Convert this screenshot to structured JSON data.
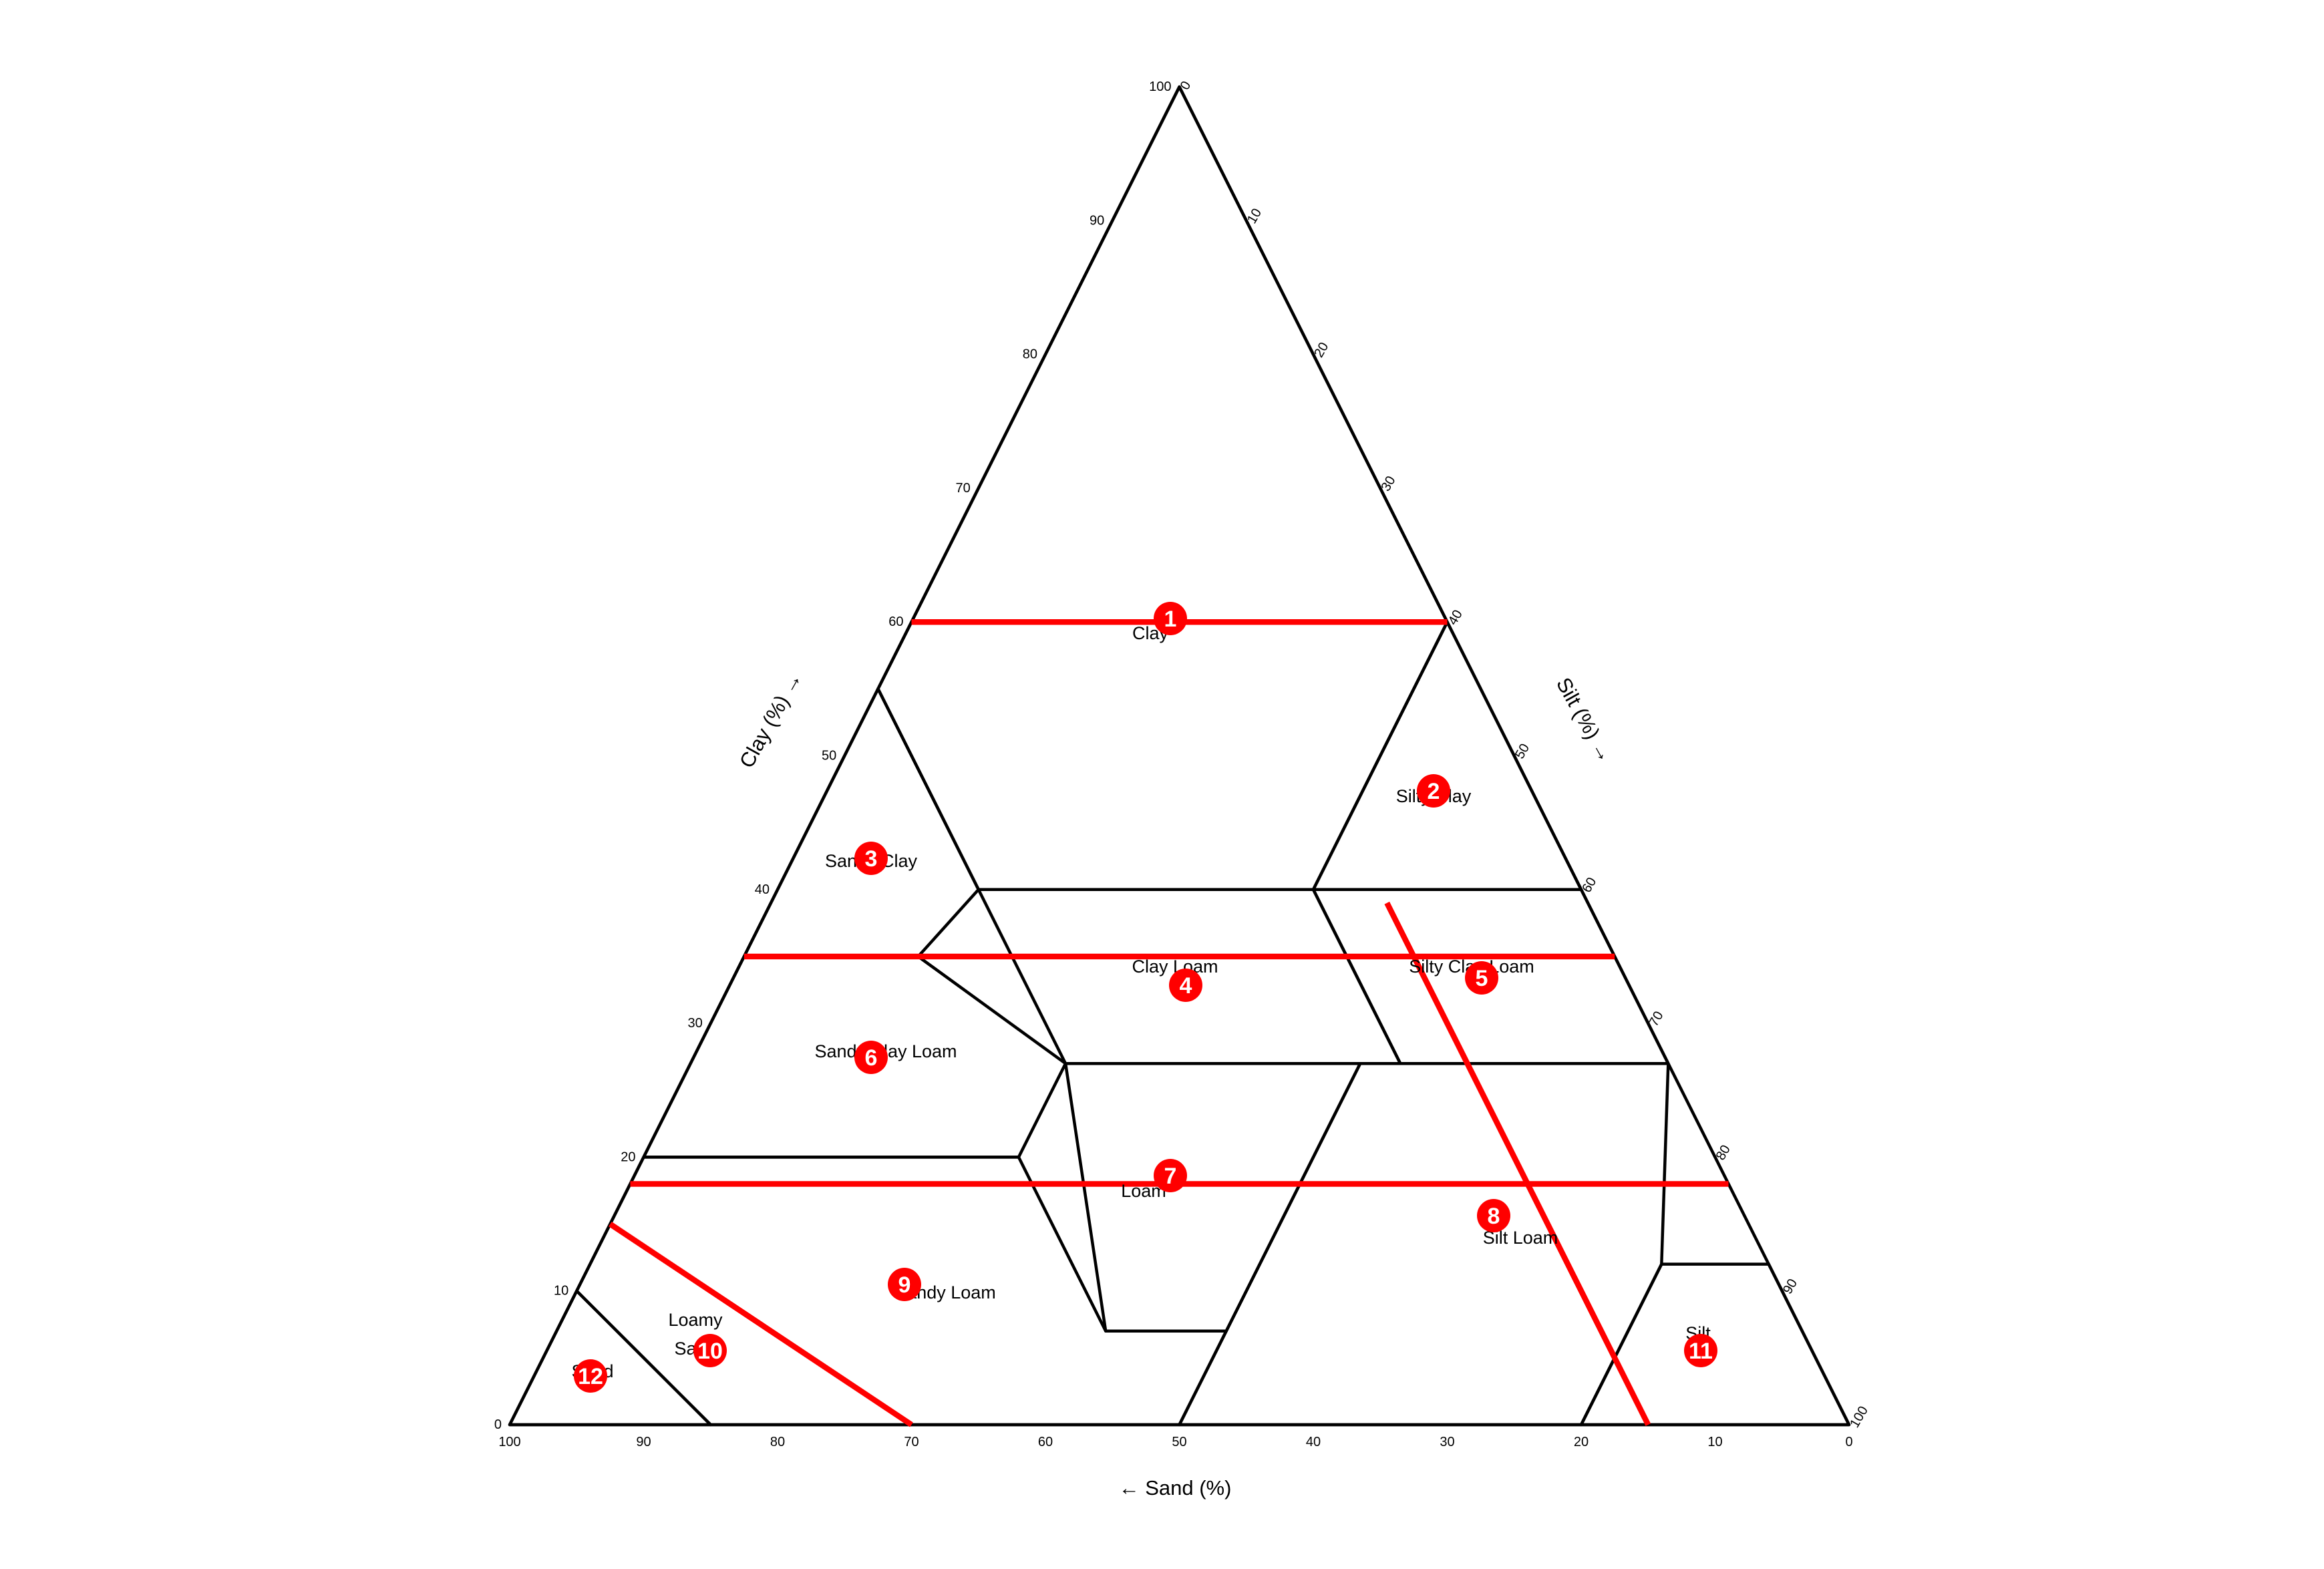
{
  "axes": {
    "clay_title": "Clay (%) →",
    "silt_title": "Silt (%) →",
    "sand_title": "← Sand (%)",
    "clay_ticks": [
      "0",
      "10",
      "20",
      "30",
      "40",
      "50",
      "60",
      "70",
      "80",
      "90",
      "100"
    ],
    "silt_ticks": [
      "0",
      "10",
      "20",
      "30",
      "40",
      "50",
      "60",
      "70",
      "80",
      "90",
      "100"
    ],
    "sand_ticks": [
      "100",
      "90",
      "80",
      "70",
      "60",
      "50",
      "40",
      "30",
      "20",
      "10",
      "0"
    ]
  },
  "regions": [
    {
      "name": "Clay",
      "lines": [
        "Clay"
      ]
    },
    {
      "name": "Silty Clay",
      "lines": [
        "Silty Clay"
      ]
    },
    {
      "name": "Sandy Clay",
      "lines": [
        "Sandy Clay"
      ]
    },
    {
      "name": "Clay Loam",
      "lines": [
        "Clay Loam"
      ]
    },
    {
      "name": "Silty Clay Loam",
      "lines": [
        "Silty Clay Loam"
      ]
    },
    {
      "name": "Sandy Clay Loam",
      "lines": [
        "Sandy Clay Loam"
      ]
    },
    {
      "name": "Loam",
      "lines": [
        "Loam"
      ]
    },
    {
      "name": "Silt Loam",
      "lines": [
        "Silt Loam"
      ]
    },
    {
      "name": "Sandy Loam",
      "lines": [
        "Sandy Loam"
      ]
    },
    {
      "name": "Loamy Sand",
      "lines": [
        "Loamy",
        "Sand"
      ]
    },
    {
      "name": "Silt",
      "lines": [
        "Silt"
      ]
    },
    {
      "name": "Sand",
      "lines": [
        "Sand"
      ]
    }
  ],
  "red_lines": [
    {
      "label": "clay = 60%"
    },
    {
      "label": "clay = 35%"
    },
    {
      "label": "clay = 18%"
    },
    {
      "label": "sand = 15%"
    },
    {
      "label": "sand - 1.5 × clay = 70"
    }
  ],
  "markers": [
    "1",
    "2",
    "3",
    "4",
    "5",
    "6",
    "7",
    "8",
    "9",
    "10",
    "11",
    "12"
  ],
  "colors": {
    "boundary": "#000000",
    "red": "#ff0000",
    "marker_text": "#ffffff"
  }
}
